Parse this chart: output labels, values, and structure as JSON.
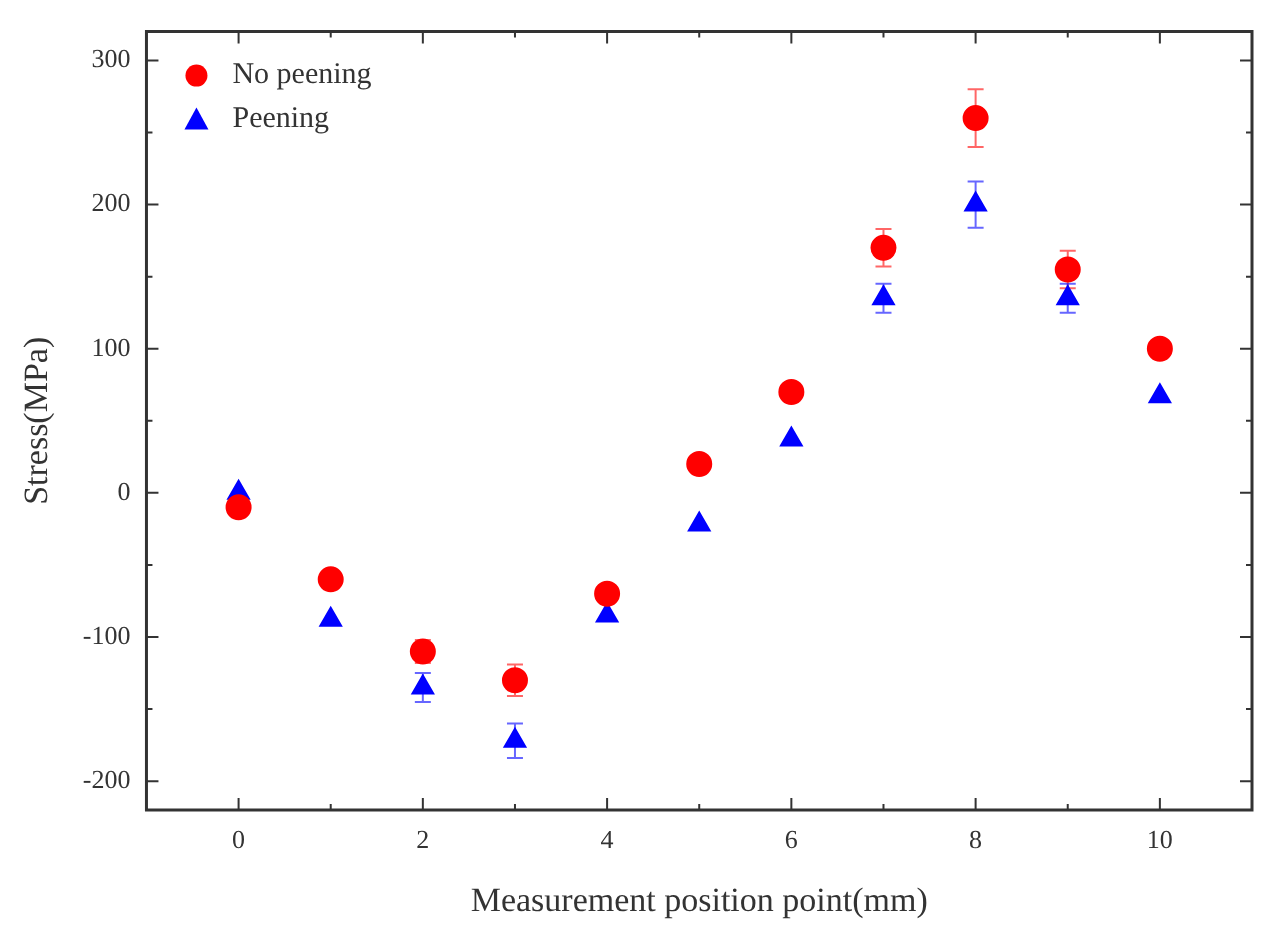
{
  "chart_data": {
    "type": "scatter",
    "xlabel": "Measurement position point(mm)",
    "ylabel": "Stress(MPa)",
    "x": [
      0,
      1,
      2,
      3,
      4,
      5,
      6,
      7,
      8,
      9,
      10
    ],
    "series": [
      {
        "name": "No peening",
        "color": "#ff0000",
        "marker": "circle",
        "values": [
          -10,
          -60,
          -110,
          -130,
          -70,
          20,
          70,
          170,
          260,
          155,
          100
        ],
        "errors": [
          null,
          null,
          8,
          11,
          null,
          null,
          null,
          13,
          20,
          13,
          null
        ]
      },
      {
        "name": "Peening",
        "color": "#0000ff",
        "marker": "triangle",
        "values": [
          0,
          -88,
          -135,
          -172,
          -85,
          -22,
          37,
          135,
          200,
          135,
          67
        ],
        "errors": [
          null,
          null,
          10,
          12,
          null,
          null,
          null,
          10,
          16,
          10,
          null
        ]
      }
    ],
    "xlim": [
      -1,
      11
    ],
    "xticks": [
      0,
      2,
      4,
      6,
      8,
      10
    ],
    "ylim": [
      -220,
      320
    ],
    "yticks": [
      -200,
      -100,
      0,
      100,
      200,
      300
    ],
    "grid": false,
    "legend": "top left"
  }
}
